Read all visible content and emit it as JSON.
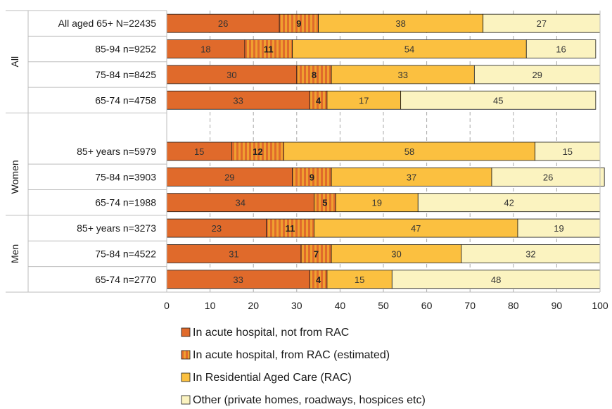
{
  "chart_data": {
    "type": "bar",
    "orientation": "horizontal",
    "stacked": true,
    "xlim": [
      0,
      100
    ],
    "xticks": [
      "0",
      "10",
      "20",
      "30",
      "40",
      "50",
      "60",
      "70",
      "80",
      "90",
      "100"
    ],
    "grid": "vertical dashed",
    "legend_position": "bottom",
    "groups": [
      {
        "label": "All",
        "rows": [
          0,
          1,
          2,
          3
        ]
      },
      {
        "label": "Women",
        "rows": [
          5,
          6,
          7
        ]
      },
      {
        "label": "Men",
        "rows": [
          8,
          9,
          10
        ]
      }
    ],
    "categories": [
      "All aged 65+ N=22435",
      "85-94 n=9252",
      "75-84 n=8425",
      "65-74 n=4758",
      "",
      "85+ years n=5979",
      "75-84 n=3903",
      "65-74 n=1988",
      "85+ years n=3273",
      "75-84 n=4522",
      "65-74 n=2770"
    ],
    "series": [
      {
        "name": "In acute hospital, not from RAC",
        "color": "#e06a2b",
        "values": [
          26,
          18,
          30,
          33,
          null,
          15,
          29,
          34,
          23,
          31,
          33
        ]
      },
      {
        "name": "In acute hospital, from RAC (estimated)",
        "color": "#f0a030",
        "pattern": "vertical-stripes",
        "stripe_color": "#e06a2b",
        "values": [
          9,
          11,
          8,
          4,
          null,
          12,
          9,
          5,
          11,
          7,
          4
        ]
      },
      {
        "name": "In Residential Aged Care (RAC)",
        "color": "#fbc040",
        "values": [
          38,
          54,
          33,
          17,
          null,
          58,
          37,
          19,
          47,
          30,
          15
        ]
      },
      {
        "name": "Other (private homes, roadways, hospices etc)",
        "color": "#fbf3c0",
        "values": [
          27,
          16,
          29,
          45,
          null,
          15,
          26,
          42,
          19,
          32,
          48
        ]
      }
    ]
  }
}
